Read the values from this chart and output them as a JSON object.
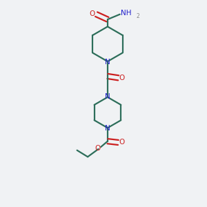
{
  "bg_color": "#f0f2f4",
  "bond_color": "#2d6e5a",
  "N_color": "#2020cc",
  "O_color": "#cc2020",
  "H_color": "#888888",
  "line_width": 1.6,
  "figsize": [
    3.0,
    3.0
  ],
  "dpi": 100,
  "xlim": [
    0,
    10
  ],
  "ylim": [
    0,
    10
  ]
}
